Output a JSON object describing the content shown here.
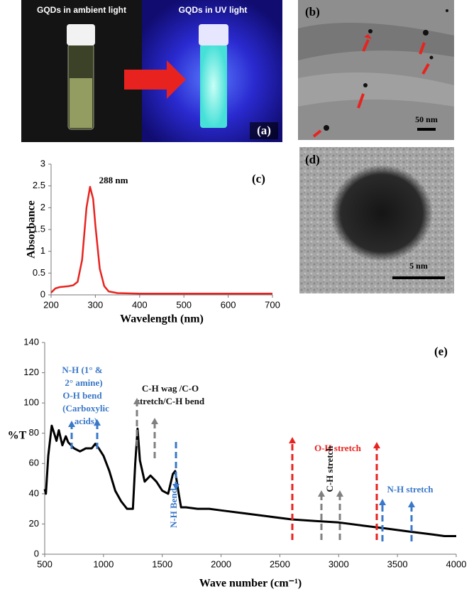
{
  "images": {
    "a": {
      "left_caption": "GQDs in ambient light",
      "right_caption": "GQDs in UV light",
      "label": "(a)"
    },
    "b": {
      "label": "(b)",
      "scale": "50 nm"
    },
    "d": {
      "label": "(d)",
      "scale": "5 nm"
    }
  },
  "chart_data": [
    {
      "type": "line",
      "panel_label": "(c)",
      "x_label": "Wavelength (nm)",
      "y_label": "Absorbance",
      "annotations": [
        "288 nm"
      ],
      "color": "#e8231f",
      "x": [
        200,
        210,
        220,
        240,
        250,
        260,
        270,
        280,
        288,
        295,
        300,
        310,
        320,
        330,
        350,
        400,
        500,
        600,
        700
      ],
      "values": [
        0.05,
        0.15,
        0.18,
        0.2,
        0.22,
        0.3,
        0.8,
        2.0,
        2.48,
        2.2,
        1.6,
        0.6,
        0.2,
        0.08,
        0.04,
        0.03,
        0.03,
        0.03,
        0.03
      ],
      "xlim": [
        200,
        700
      ],
      "xticks": [
        200,
        300,
        400,
        500,
        600,
        700
      ],
      "ylim": [
        0,
        3
      ],
      "yticks": [
        0,
        0.5,
        1,
        1.5,
        2,
        2.5,
        3
      ],
      "grid": false
    },
    {
      "type": "line",
      "panel_label": "(e)",
      "x_label": "Wave number (cm⁻¹)",
      "y_label": "%T",
      "annotations": [
        "N-H (1° &",
        "2° amine)",
        "O-H bend",
        "(Carboxylic",
        "acids)",
        "C-H wag /C-O",
        "stretch/C-H bend",
        "N-H Bend",
        "O-H stretch",
        "C-H stretch",
        "N-H stretch"
      ],
      "color": "#000000",
      "x": [
        500,
        510,
        530,
        560,
        580,
        600,
        620,
        650,
        680,
        700,
        750,
        800,
        850,
        900,
        930,
        960,
        1000,
        1050,
        1100,
        1150,
        1200,
        1250,
        1270,
        1290,
        1310,
        1350,
        1400,
        1450,
        1500,
        1550,
        1590,
        1610,
        1640,
        1660,
        1700,
        1800,
        1900,
        2000,
        2200,
        2400,
        2600,
        2800,
        3000,
        3200,
        3400,
        3600,
        3800,
        3900,
        4000
      ],
      "values": [
        43,
        40,
        65,
        85,
        80,
        75,
        82,
        72,
        78,
        74,
        70,
        68,
        70,
        70,
        73,
        70,
        65,
        55,
        42,
        35,
        30,
        30,
        60,
        83,
        62,
        48,
        52,
        48,
        42,
        40,
        53,
        55,
        40,
        31,
        31,
        30,
        30,
        29,
        27,
        25,
        23,
        22,
        21,
        19,
        17,
        15,
        13,
        12,
        12
      ],
      "xlim": [
        500,
        4000
      ],
      "xticks": [
        500,
        1000,
        1500,
        2000,
        2500,
        3000,
        3500,
        4000
      ],
      "ylim": [
        0,
        140
      ],
      "yticks": [
        0,
        20,
        40,
        60,
        80,
        100,
        120,
        140
      ],
      "grid": false
    }
  ]
}
